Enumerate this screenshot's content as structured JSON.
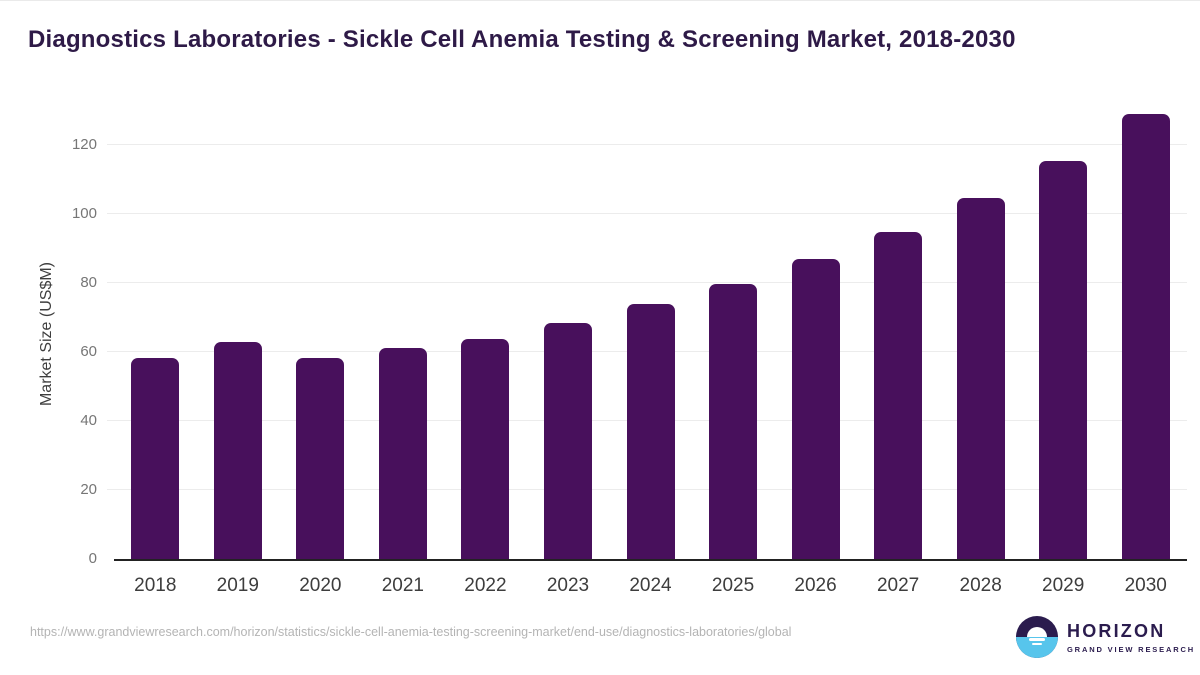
{
  "page": {
    "title": "Diagnostics Laboratories - Sickle Cell Anemia Testing & Screening Market, 2018-2030",
    "source_url": "https://www.grandviewresearch.com/horizon/statistics/sickle-cell-anemia-testing-screening-market/end-use/diagnostics-laboratories/global"
  },
  "logo": {
    "brand": "HORIZON",
    "tagline": "GRAND VIEW RESEARCH"
  },
  "chart_data": {
    "type": "bar",
    "title": "Diagnostics Laboratories - Sickle Cell Anemia Testing & Screening Market, 2018-2030",
    "categories": [
      "2018",
      "2019",
      "2020",
      "2021",
      "2022",
      "2023",
      "2024",
      "2025",
      "2026",
      "2027",
      "2028",
      "2029",
      "2030"
    ],
    "values": [
      58.4,
      62.8,
      58.2,
      61.1,
      63.7,
      68.3,
      73.8,
      79.7,
      86.9,
      94.9,
      104.5,
      115.5,
      128.9
    ],
    "series_name": "Market Size",
    "xlabel": "",
    "ylabel": "Market Size (US$M)",
    "y_ticks": [
      0,
      20,
      40,
      60,
      80,
      100,
      120
    ],
    "ylim": [
      0,
      130
    ],
    "grid": true,
    "legend": false,
    "bar_color": "#48105c"
  },
  "colors": {
    "bar": "#48105c",
    "title": "#2e1a47",
    "axis_line": "#222222",
    "gridline": "#ececec",
    "tick_label": "#767676",
    "x_label": "#3d3d3d",
    "axis_title": "#3e3e3e",
    "source_text": "#b4b4b4",
    "logo_purple": "#2b1c4e",
    "logo_blue": "#57c5ec"
  }
}
